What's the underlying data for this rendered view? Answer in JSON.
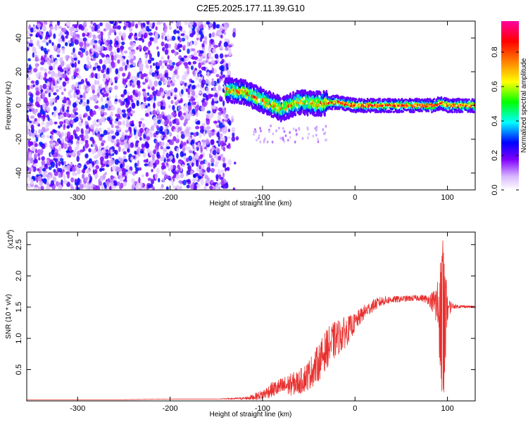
{
  "title": "C2E5.2025.177.11.39.G10",
  "chart_data": [
    {
      "type": "heatmap",
      "xlabel": "Height of straight line (km)",
      "ylabel": "Frequency (Hz)",
      "xlim": [
        -355,
        130
      ],
      "ylim": [
        -50,
        50
      ],
      "xticks": [
        -300,
        -200,
        -100,
        0,
        100
      ],
      "yticks": [
        -40,
        -20,
        0,
        20,
        40
      ],
      "grid": false,
      "colorbar": {
        "label": "Normalized spectral amplitude",
        "range": [
          0,
          0.98
        ],
        "ticks": [
          "0.0",
          "0.2",
          "0.4",
          "0.6",
          "0.8"
        ],
        "colors": [
          "#ffffff",
          "#e8d4ff",
          "#8000ff",
          "#0000ff",
          "#00ffff",
          "#00ff00",
          "#ffff00",
          "#ff8000",
          "#ff0000",
          "#ff00a0"
        ]
      },
      "regions": [
        {
          "description": "noise",
          "x_range": [
            -355,
            -135
          ],
          "freq_range": [
            -50,
            50
          ],
          "amplitude_range": [
            0.05,
            0.3
          ]
        },
        {
          "description": "signal track",
          "x_range": [
            -140,
            130
          ],
          "freq_center_points": [
            [
              -140,
              9
            ],
            [
              -120,
              8
            ],
            [
              -100,
              3
            ],
            [
              -80,
              -2
            ],
            [
              -60,
              2
            ],
            [
              -40,
              1
            ],
            [
              -20,
              2
            ],
            [
              0,
              0
            ],
            [
              50,
              0
            ],
            [
              88,
              0
            ],
            [
              92,
              2
            ],
            [
              100,
              0
            ],
            [
              130,
              0
            ]
          ],
          "amplitude_range": [
            0.2,
            0.95
          ]
        }
      ]
    },
    {
      "type": "line",
      "xlabel": "Height of straight line (km)",
      "ylabel": "SNR (10 * v/v)",
      "yscale_label": "(x10",
      "yscale_exp": "4",
      "xlim": [
        -355,
        130
      ],
      "ylim": [
        0,
        2.7
      ],
      "xticks": [
        -300,
        -200,
        -100,
        0,
        100
      ],
      "yticks": [
        0.5,
        1.0,
        1.5,
        2.0,
        2.5
      ],
      "grid": false,
      "line_color": "#e8302e",
      "series": [
        {
          "x": [
            -355,
            -300,
            -250,
            -200,
            -150,
            -120,
            -110,
            -100,
            -90,
            -80,
            -70,
            -60,
            -50,
            -40,
            -30,
            -20,
            -10,
            0,
            10,
            20,
            30,
            40,
            50,
            60,
            70,
            80,
            85,
            90,
            95,
            100,
            105,
            110,
            120,
            130
          ],
          "values": [
            0.02,
            0.02,
            0.02,
            0.03,
            0.03,
            0.04,
            0.06,
            0.1,
            0.18,
            0.22,
            0.26,
            0.3,
            0.42,
            0.6,
            0.85,
            1.0,
            1.1,
            1.25,
            1.42,
            1.53,
            1.6,
            1.62,
            1.63,
            1.64,
            1.65,
            1.62,
            1.58,
            1.5,
            1.2,
            1.48,
            1.52,
            1.51,
            1.51,
            1.5
          ],
          "noise": [
            0.0,
            0.0,
            0.0,
            0.0,
            0.0,
            0.02,
            0.05,
            0.08,
            0.12,
            0.15,
            0.18,
            0.2,
            0.25,
            0.3,
            0.32,
            0.3,
            0.25,
            0.15,
            0.12,
            0.1,
            0.08,
            0.06,
            0.05,
            0.05,
            0.05,
            0.08,
            0.2,
            0.6,
            1.3,
            0.2,
            0.05,
            0.03,
            0.02,
            0.02
          ]
        }
      ]
    }
  ]
}
